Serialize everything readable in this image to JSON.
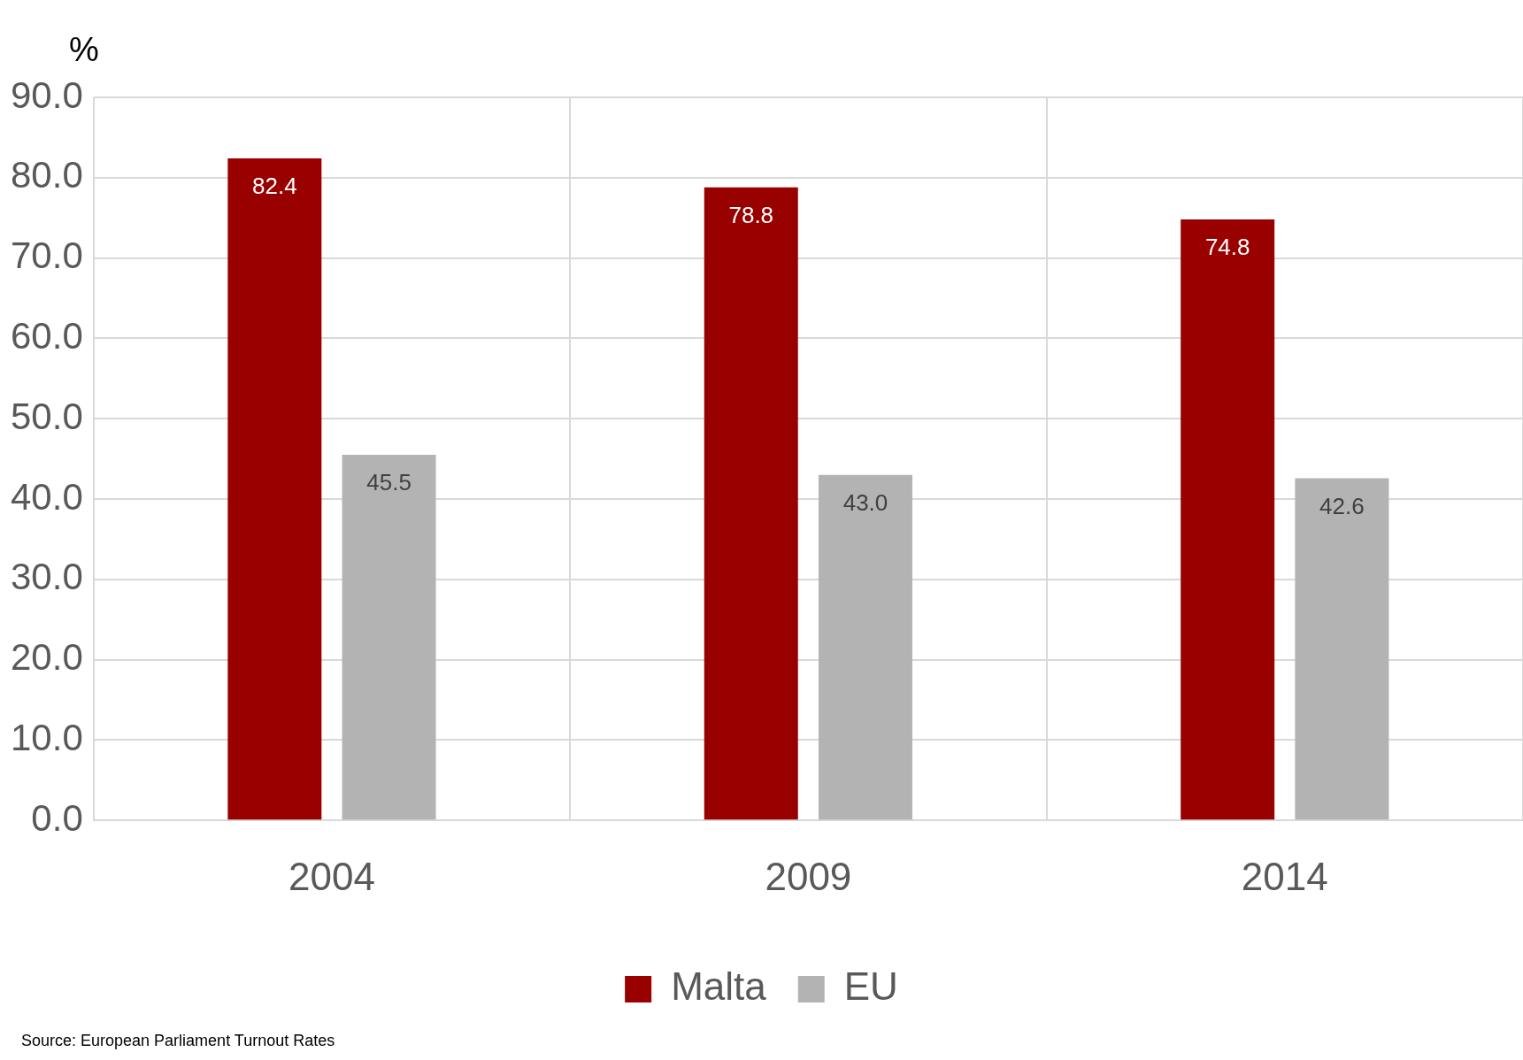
{
  "chart_data": {
    "type": "bar",
    "ylabel": "%",
    "categories": [
      "2004",
      "2009",
      "2014"
    ],
    "series": [
      {
        "name": "Malta",
        "color": "#990000",
        "values": [
          82.4,
          78.8,
          74.8
        ],
        "value_labels": [
          "82.4",
          "78.8",
          "74.8"
        ]
      },
      {
        "name": "EU",
        "color": "#b3b3b3",
        "values": [
          45.5,
          43.0,
          42.6
        ],
        "value_labels": [
          "45.5",
          "43.0",
          "42.6"
        ]
      }
    ],
    "ylim": [
      0,
      90
    ],
    "yticks": [
      {
        "value": 0,
        "label": "0.0"
      },
      {
        "value": 10,
        "label": "10.0"
      },
      {
        "value": 20,
        "label": "20.0"
      },
      {
        "value": 30,
        "label": "30.0"
      },
      {
        "value": 40,
        "label": "40.0"
      },
      {
        "value": 50,
        "label": "50.0"
      },
      {
        "value": 60,
        "label": "60.0"
      },
      {
        "value": 70,
        "label": "70.0"
      },
      {
        "value": 80,
        "label": "80.0"
      },
      {
        "value": 90,
        "label": "90.0"
      }
    ],
    "grid": true,
    "legend": "bottom",
    "annotations": [
      "Source: European Parliament Turnout Rates"
    ]
  }
}
